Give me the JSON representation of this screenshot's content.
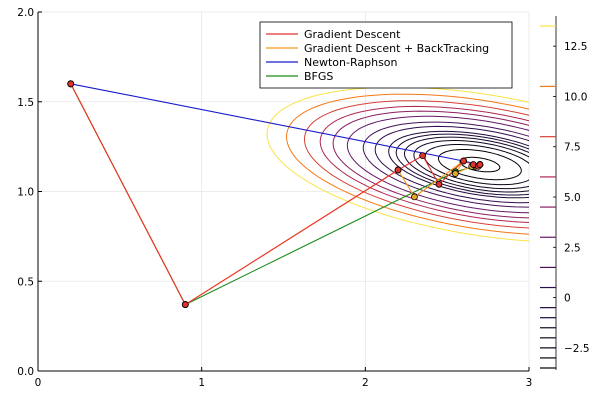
{
  "chart_data": {
    "type": "line",
    "title": "",
    "xlabel": "",
    "ylabel": "",
    "xlim": [
      0,
      3
    ],
    "ylim": [
      0,
      2
    ],
    "grid": true,
    "legend_position": "top-right",
    "x_ticks": [
      0,
      1,
      2,
      3
    ],
    "y_ticks": [
      0.0,
      0.5,
      1.0,
      1.5,
      2.0
    ],
    "x_tick_labels": [
      "0",
      "1",
      "2",
      "3"
    ],
    "y_tick_labels": [
      "0.0",
      "0.5",
      "1.0",
      "1.5",
      "2.0"
    ],
    "contour_center": [
      2.7,
      1.15
    ],
    "contour_levels": [
      -3.5,
      -3.0,
      -2.5,
      -2.0,
      -1.5,
      -1.0,
      -0.5,
      0.5,
      1.5,
      3.0,
      4.5,
      6.0,
      8.0,
      10.5,
      13.5
    ],
    "colorbar": {
      "range": [
        -3.6,
        14.0
      ],
      "ticks": [
        -2.5,
        0,
        2.5,
        5.0,
        7.5,
        10.0,
        12.5
      ],
      "tick_labels": [
        "−2.5",
        "0",
        "2.5",
        "5.0",
        "7.5",
        "10.0",
        "12.5"
      ]
    },
    "series": [
      {
        "name": "Gradient Descent",
        "color": "#e8322e",
        "marker_color": "#e0332d",
        "x": [
          0.2,
          0.9,
          2.2,
          2.35,
          2.45,
          2.6,
          2.66,
          2.69,
          2.7
        ],
        "y": [
          1.6,
          0.37,
          1.12,
          1.2,
          1.04,
          1.17,
          1.15,
          1.14,
          1.15
        ]
      },
      {
        "name": "Gradient Descent + BackTracking",
        "color": "#f59a1b",
        "marker_color": "#e8a62a",
        "x": [
          0.2,
          0.9,
          2.2,
          2.3,
          2.6,
          2.55,
          2.65,
          2.7
        ],
        "y": [
          1.6,
          0.37,
          1.12,
          0.97,
          1.17,
          1.1,
          1.14,
          1.15
        ]
      },
      {
        "name": "Newton-Raphson",
        "color": "#1919cc",
        "marker_color": "#1f77b4",
        "x": [
          0.2,
          2.6,
          2.7
        ],
        "y": [
          1.6,
          1.17,
          1.15
        ]
      },
      {
        "name": "BFGS",
        "color": "#1a8a1a",
        "marker_color": "#28a02c",
        "x": [
          0.2,
          0.9,
          2.55,
          2.67,
          2.7
        ],
        "y": [
          1.6,
          0.37,
          1.11,
          1.14,
          1.15
        ]
      }
    ]
  }
}
